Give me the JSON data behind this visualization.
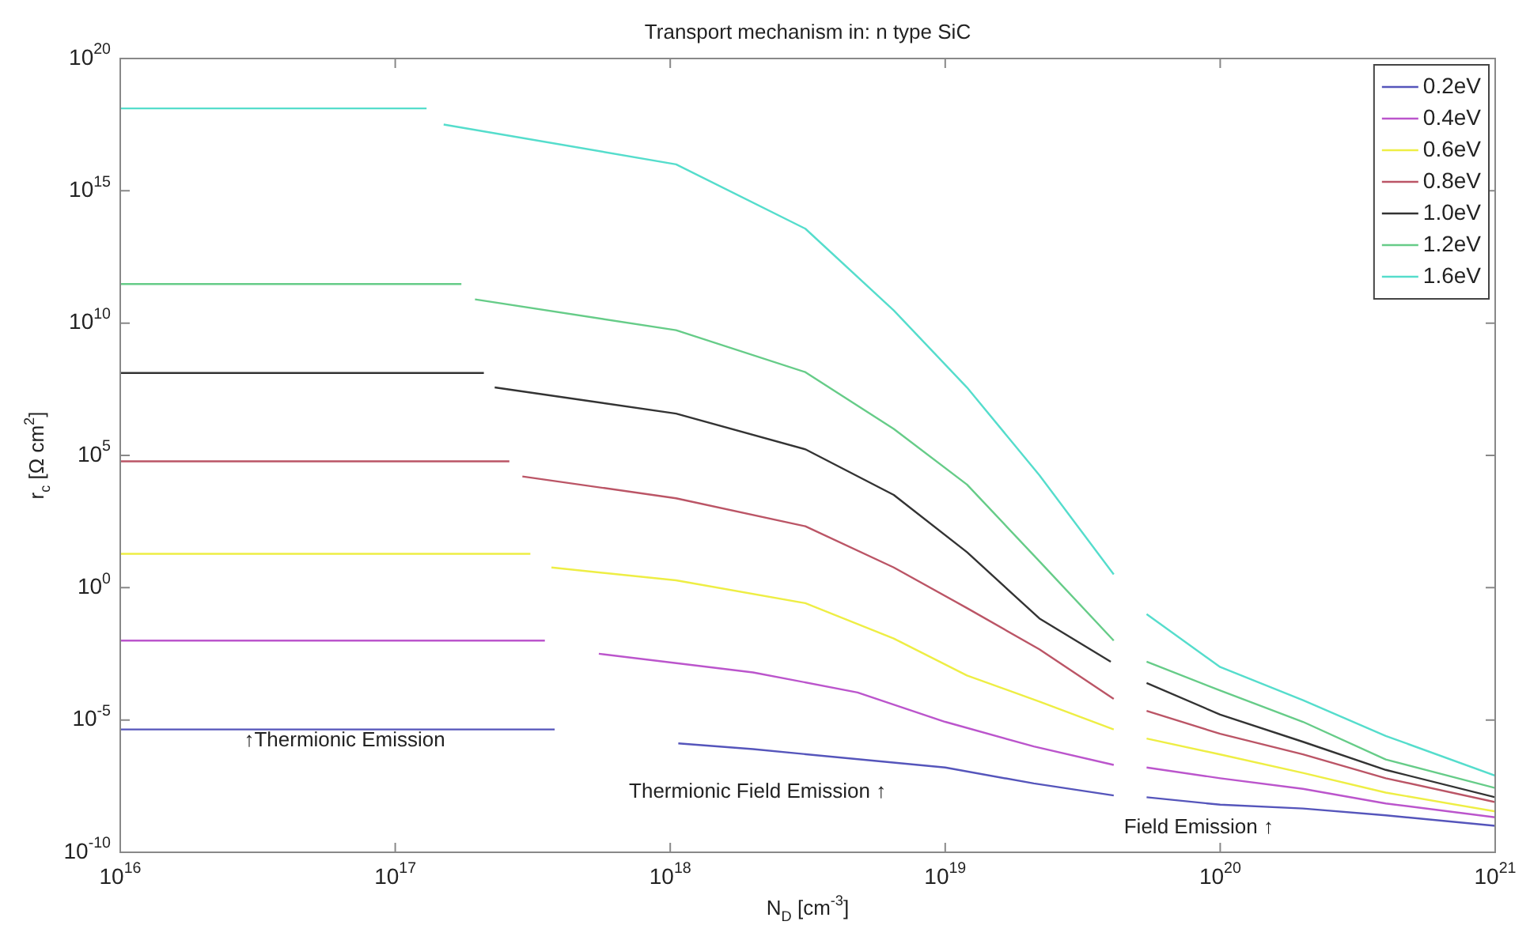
{
  "chart_data": {
    "type": "line",
    "title": "Transport mechanism in: n type SiC",
    "xlabel": "N$_{D}$ [cm$^{-3}$]",
    "ylabel": "r$_{c}$ [Ω cm$^{2}$]",
    "log": "xy",
    "xlim": [
      1e+16,
      1e+21
    ],
    "ylim": [
      1e-10,
      1e+20
    ],
    "xticks": [
      {
        "value": 1e+16,
        "label": "10$^{16}$"
      },
      {
        "value": 1e+17,
        "label": "10$^{17}$"
      },
      {
        "value": 1e+18,
        "label": "10$^{18}$"
      },
      {
        "value": 1e+19,
        "label": "10$^{19}$"
      },
      {
        "value": 1e+20,
        "label": "10$^{20}$"
      },
      {
        "value": 1e+21,
        "label": "10$^{21}$"
      }
    ],
    "yticks": [
      {
        "value": 1e-10,
        "label": "10$^{-10}$"
      },
      {
        "value": 1e-05,
        "label": "10$^{-5}$"
      },
      {
        "value": 1,
        "label": "10$^{0}$"
      },
      {
        "value": 100000.0,
        "label": "10$^{5}$"
      },
      {
        "value": 10000000000.0,
        "label": "10$^{10}$"
      },
      {
        "value": 1000000000000000.0,
        "label": "10$^{15}$"
      },
      {
        "value": 1e+20,
        "label": "10$^{20}$"
      }
    ],
    "grid": false,
    "legend": "top right",
    "marker": "none",
    "line_style": "solid",
    "annotations": [
      "↑Thermionic Emission",
      "Thermionic Field Emission ↑",
      "Field Emission ↑"
    ],
    "series": [
      {
        "name": "0.2eV",
        "color": "#5555bb",
        "x": [
          1e+16,
          3.8e+17,
          7e+17,
          1.07e+18,
          2e+18,
          1e+19,
          2.1e+19,
          4.1e+19,
          4.7e+19,
          5.4e+19,
          1e+20,
          2e+20,
          4e+20,
          1e+21
        ],
        "values": [
          4.4e-06,
          4.4e-06,
          null,
          1.3e-06,
          7.9e-07,
          1.6e-07,
          4e-08,
          1.4e-08,
          null,
          1.2e-08,
          6.3e-09,
          4.5e-09,
          2.5e-09,
          1e-09
        ]
      },
      {
        "name": "0.4eV",
        "color": "#bb55cc",
        "x": [
          1e+16,
          3.5e+17,
          4.5e+17,
          5.5e+17,
          2e+18,
          4.8e+18,
          1e+19,
          2.1e+19,
          4.1e+19,
          4.7e+19,
          5.4e+19,
          1e+20,
          2e+20,
          4e+20,
          1e+21
        ],
        "values": [
          0.01,
          0.01,
          null,
          0.0032,
          0.00063,
          0.00011,
          8.5e-06,
          1e-06,
          2e-07,
          null,
          1.6e-07,
          6.3e-08,
          2.5e-08,
          7e-09,
          2.1e-09
        ]
      },
      {
        "name": "0.6eV",
        "color": "#eeee44",
        "x": [
          1e+16,
          3.1e+17,
          3.4e+17,
          3.7e+17,
          1.05e+18,
          3.1e+18,
          6.5e+18,
          1.2e+19,
          2.2e+19,
          4.1e+19,
          4.7e+19,
          5.4e+19,
          1e+20,
          2e+20,
          4e+20,
          1e+21
        ],
        "values": [
          19,
          19,
          null,
          5.8,
          1.9,
          0.26,
          0.012,
          0.00048,
          5e-05,
          4.4e-06,
          null,
          2e-06,
          5e-07,
          1e-07,
          1.8e-08,
          3.5e-09
        ]
      },
      {
        "name": "0.8eV",
        "color": "#bb5566",
        "x": [
          1e+16,
          2.6e+17,
          2.75e+17,
          2.9e+17,
          1.05e+18,
          3.1e+18,
          6.5e+18,
          1.2e+19,
          2.2e+19,
          4.1e+19,
          4.7e+19,
          5.4e+19,
          1e+20,
          2e+20,
          4e+20,
          1e+21
        ],
        "values": [
          60000.0,
          60000.0,
          null,
          16000.0,
          2400.0,
          210,
          5.8,
          0.17,
          0.0047,
          6.3e-05,
          null,
          2.2e-05,
          3e-06,
          5e-07,
          6.3e-08,
          7.9e-09
        ]
      },
      {
        "name": "1.0eV",
        "color": "#333333",
        "x": [
          1e+16,
          2.1e+17,
          2.2e+17,
          2.3e+17,
          1.05e+18,
          3.1e+18,
          6.5e+18,
          1.2e+19,
          2.2e+19,
          4e+19,
          4.7e+19,
          5.4e+19,
          1e+20,
          2e+20,
          4e+20,
          1e+21
        ],
        "values": [
          130000000.0,
          130000000.0,
          null,
          37000000.0,
          3800000.0,
          170000.0,
          3200.0,
          22,
          0.069,
          0.0016,
          null,
          0.00025,
          1.6e-05,
          1.5e-06,
          1.3e-07,
          1.2e-08
        ]
      },
      {
        "name": "1.2eV",
        "color": "#66cc88",
        "x": [
          1e+16,
          1.74e+17,
          1.85e+17,
          1.95e+17,
          1.05e+18,
          3.1e+18,
          6.5e+18,
          1.2e+19,
          2.2e+19,
          4.1e+19,
          4.7e+19,
          5.4e+19,
          1e+20,
          2e+20,
          4e+20,
          1e+21
        ],
        "values": [
          300000000000.0,
          300000000000.0,
          null,
          79000000000.0,
          5400000000.0,
          140000000.0,
          1000000.0,
          7900.0,
          10,
          0.01,
          null,
          0.0016,
          0.00013,
          8.5e-06,
          3.2e-07,
          2.7e-08
        ]
      },
      {
        "name": "1.6eV",
        "color": "#55ddcc",
        "x": [
          1e+16,
          1.3e+17,
          1.4e+17,
          1.5e+17,
          1.05e+18,
          3.1e+18,
          6.5e+18,
          1.2e+19,
          2.2e+19,
          4.1e+19,
          4.7e+19,
          5.4e+19,
          1e+20,
          2e+20,
          4e+20,
          1e+21
        ],
        "values": [
          1.3e+18,
          1.3e+18,
          null,
          3.2e+17,
          1e+16,
          37000000000000.0,
          30000000000.0,
          37000000.0,
          18000.0,
          3.2,
          null,
          0.1,
          0.001,
          5.6e-05,
          2.5e-06,
          7.9e-08
        ]
      }
    ]
  }
}
